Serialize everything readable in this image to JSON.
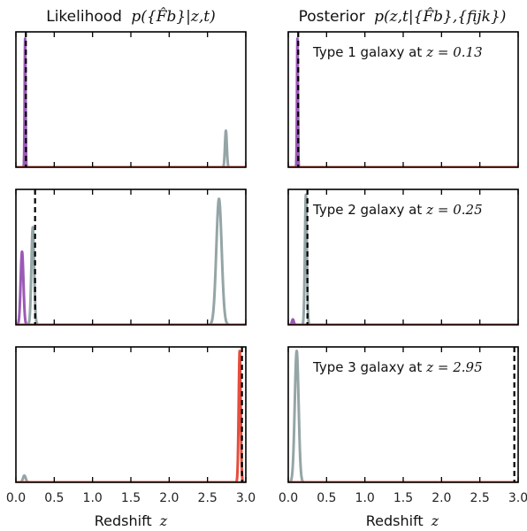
{
  "titles": {
    "left_prefix": "Likelihood",
    "left_math": "p({F̂b}|z,t)",
    "right_prefix": "Posterior",
    "right_math": "p(z,t|{F̂b},{fijk})"
  },
  "xlabel_text": "Redshift",
  "xlabel_math": "z",
  "colors": {
    "type1": "#9b59b6",
    "type2": "#95a5a6",
    "type3": "#e74c3c",
    "truth": "#000000"
  },
  "chart_data": {
    "type": "line",
    "xlim": [
      0.0,
      3.0
    ],
    "xticks": [
      "0.0",
      "0.5",
      "1.0",
      "1.5",
      "2.0",
      "2.5",
      "3.0"
    ],
    "rows": [
      {
        "true_z": 0.13,
        "annotation": "Type 1 galaxy at",
        "annotation_math": "z = 0.13",
        "likelihood": [
          {
            "name": "Type 1",
            "color": "#9b59b6",
            "peaks": [
              {
                "mu": 0.12,
                "sigma": 0.006,
                "amp": 0.95
              }
            ]
          },
          {
            "name": "Type 2",
            "color": "#95a5a6",
            "peaks": [
              {
                "mu": 2.74,
                "sigma": 0.012,
                "amp": 0.27
              }
            ]
          },
          {
            "name": "Type 3",
            "color": "#e74c3c",
            "peaks": []
          }
        ],
        "posterior": [
          {
            "name": "Type 1",
            "color": "#9b59b6",
            "peaks": [
              {
                "mu": 0.12,
                "sigma": 0.006,
                "amp": 0.95
              }
            ]
          },
          {
            "name": "Type 2",
            "color": "#95a5a6",
            "peaks": []
          },
          {
            "name": "Type 3",
            "color": "#e74c3c",
            "peaks": []
          }
        ]
      },
      {
        "true_z": 0.25,
        "annotation": "Type 2 galaxy at",
        "annotation_math": "z = 0.25",
        "likelihood": [
          {
            "name": "Type 1",
            "color": "#9b59b6",
            "peaks": [
              {
                "mu": 0.08,
                "sigma": 0.018,
                "amp": 0.54
              }
            ]
          },
          {
            "name": "Type 2",
            "color": "#95a5a6",
            "peaks": [
              {
                "mu": 0.22,
                "sigma": 0.018,
                "amp": 0.72
              },
              {
                "mu": 2.65,
                "sigma": 0.035,
                "amp": 0.93
              }
            ]
          },
          {
            "name": "Type 3",
            "color": "#e74c3c",
            "peaks": []
          }
        ],
        "posterior": [
          {
            "name": "Type 1",
            "color": "#9b59b6",
            "peaks": [
              {
                "mu": 0.06,
                "sigma": 0.012,
                "amp": 0.04
              }
            ]
          },
          {
            "name": "Type 2",
            "color": "#95a5a6",
            "peaks": [
              {
                "mu": 0.23,
                "sigma": 0.013,
                "amp": 0.96
              }
            ]
          },
          {
            "name": "Type 3",
            "color": "#e74c3c",
            "peaks": []
          }
        ]
      },
      {
        "true_z": 2.95,
        "annotation": "Type 3 galaxy at",
        "annotation_math": "z = 2.95",
        "likelihood": [
          {
            "name": "Type 1",
            "color": "#9b59b6",
            "peaks": []
          },
          {
            "name": "Type 2",
            "color": "#95a5a6",
            "peaks": [
              {
                "mu": 0.11,
                "sigma": 0.018,
                "amp": 0.05
              }
            ]
          },
          {
            "name": "Type 3",
            "color": "#e74c3c",
            "peaks": [
              {
                "mu": 2.92,
                "sigma": 0.013,
                "amp": 0.97
              }
            ]
          }
        ],
        "posterior": [
          {
            "name": "Type 1",
            "color": "#9b59b6",
            "peaks": []
          },
          {
            "name": "Type 2",
            "color": "#95a5a6",
            "peaks": [
              {
                "mu": 0.11,
                "sigma": 0.025,
                "amp": 0.97
              }
            ]
          },
          {
            "name": "Type 3",
            "color": "#e74c3c",
            "peaks": []
          }
        ]
      }
    ]
  }
}
